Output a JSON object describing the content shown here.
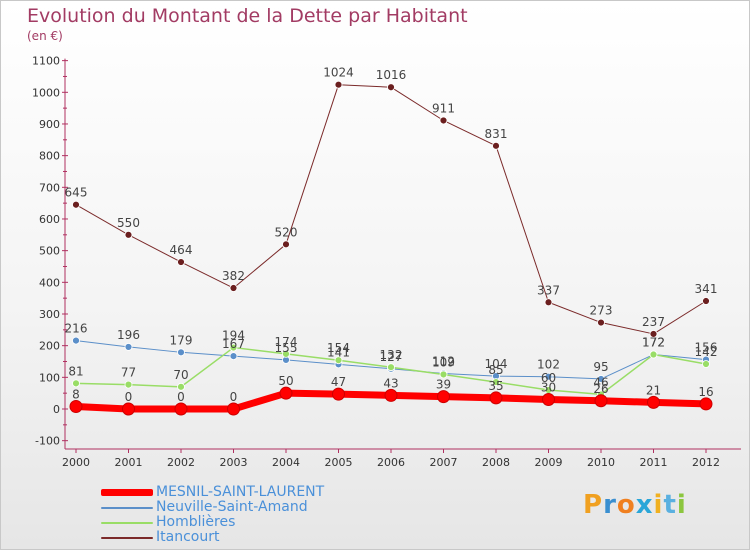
{
  "title": "Evolution du Montant de la Dette par Habitant",
  "unit_label": "(en €)",
  "brand": "Proxiti",
  "chart_data": {
    "type": "line",
    "title": "Evolution du Montant de la Dette par Habitant",
    "subtitle": "(en €)",
    "x": [
      "2000",
      "2001",
      "2002",
      "2003",
      "2004",
      "2005",
      "2006",
      "2007",
      "2008",
      "2009",
      "2010",
      "2011",
      "2012"
    ],
    "y_ticks": [
      -100,
      0,
      100,
      200,
      300,
      400,
      500,
      600,
      700,
      800,
      900,
      1000,
      1100
    ],
    "ylim": [
      -100,
      1100
    ],
    "grid": false,
    "legend_position": "bottom-left",
    "series": [
      {
        "name": "MESNIL-SAINT-LAURENT",
        "color": "#ff0000",
        "width": 7,
        "values": [
          8,
          0,
          0,
          0,
          50,
          47,
          43,
          39,
          35,
          30,
          26,
          21,
          16
        ],
        "labels": [
          "8",
          "0",
          "0",
          "0",
          "50",
          "47",
          "43",
          "39",
          "35",
          "30",
          "26",
          "21",
          "16"
        ]
      },
      {
        "name": "Neuville-Saint-Amand",
        "color": "#5b8fc9",
        "width": 1,
        "values": [
          216,
          196,
          179,
          167,
          155,
          141,
          127,
          112,
          104,
          102,
          95,
          172,
          156
        ],
        "labels": [
          "216",
          "196",
          "179",
          "167",
          "155",
          "141",
          "127",
          "112",
          "104",
          "102",
          "95",
          "172",
          "156"
        ]
      },
      {
        "name": "Homblières",
        "color": "#99dd66",
        "width": 1.5,
        "values": [
          81,
          77,
          70,
          194,
          174,
          154,
          132,
          109,
          85,
          60,
          46,
          172,
          142
        ],
        "labels": [
          "81",
          "77",
          "70",
          "194",
          "174",
          "154",
          "132",
          "109",
          "85",
          "60",
          "46",
          "172",
          "142"
        ]
      },
      {
        "name": "Itancourt",
        "color": "#7b2a2a",
        "width": 1,
        "values": [
          645,
          550,
          464,
          382,
          520,
          1024,
          1016,
          911,
          831,
          337,
          273,
          237,
          341
        ],
        "labels": [
          "645",
          "550",
          "464",
          "382",
          "520",
          "1024",
          "1016",
          "911",
          "831",
          "337",
          "273",
          "237",
          "341"
        ]
      }
    ]
  }
}
